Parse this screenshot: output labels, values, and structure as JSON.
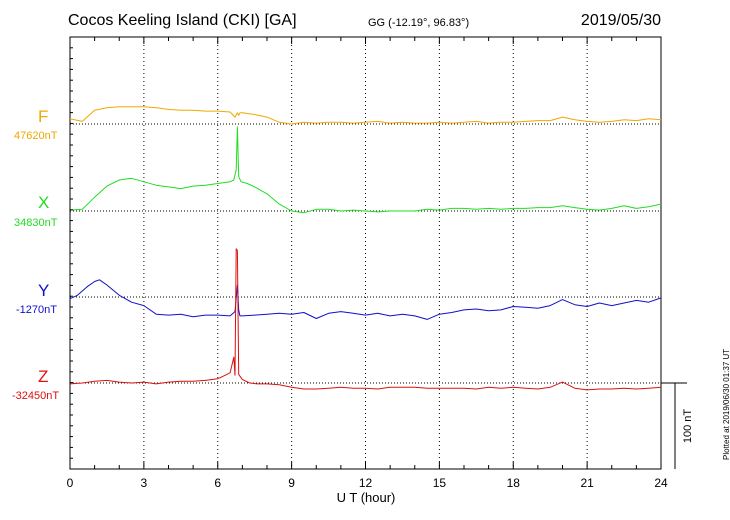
{
  "header": {
    "title": "Cocos Keeling Island (CKI)  [GA]",
    "coords": "GG (-12.19°,  96.83°)",
    "date": "2019/05/30"
  },
  "footer": {
    "plotted": "Plotted at 2019/06/30 01:37 UT"
  },
  "colors": {
    "F": "#f0a800",
    "X": "#22dd22",
    "Y": "#1010cc",
    "Z": "#dd1010"
  },
  "chart_data": {
    "type": "line",
    "xlabel": "U T (hour)",
    "xlim": [
      0,
      24
    ],
    "x_ticks": [
      "0",
      "3",
      "6",
      "9",
      "12",
      "15",
      "18",
      "21",
      "24"
    ],
    "scale_bar_label": "100 nT",
    "scale_bar_nT": 100,
    "series": [
      {
        "name": "F",
        "baseline_label": "47620nT",
        "baseline_nT": 47620,
        "x": [
          0,
          0.5,
          1,
          1.5,
          2,
          2.5,
          3,
          3.5,
          4,
          4.5,
          5,
          5.5,
          6,
          6.5,
          6.7,
          6.8,
          6.85,
          6.9,
          7,
          7.5,
          8,
          8.5,
          9,
          9.5,
          10,
          10.5,
          11,
          11.5,
          12,
          12.5,
          13,
          13.5,
          14,
          14.5,
          15,
          15.5,
          16,
          16.5,
          17,
          17.5,
          18,
          18.5,
          19,
          19.5,
          20,
          20.5,
          21,
          21.5,
          22,
          22.5,
          23,
          23.5,
          24
        ],
        "y": [
          47626,
          47623,
          47636,
          47639,
          47640,
          47640,
          47640,
          47639,
          47637,
          47636,
          47636,
          47635,
          47635,
          47634,
          47628,
          47633,
          47630,
          47633,
          47633,
          47631,
          47628,
          47622,
          47620,
          47622,
          47621,
          47622,
          47622,
          47621,
          47622,
          47623,
          47621,
          47622,
          47621,
          47621,
          47622,
          47621,
          47622,
          47623,
          47621,
          47622,
          47622,
          47623,
          47624,
          47624,
          47628,
          47625,
          47623,
          47622,
          47623,
          47625,
          47624,
          47626,
          47625
        ]
      },
      {
        "name": "X",
        "baseline_label": "34830nT",
        "baseline_nT": 34830,
        "x": [
          0,
          0.5,
          1,
          1.5,
          2,
          2.5,
          3,
          3.5,
          4,
          4.5,
          5,
          5.5,
          6,
          6.5,
          6.65,
          6.75,
          6.8,
          6.85,
          6.95,
          7.2,
          7.5,
          8,
          8.5,
          9,
          9.5,
          10,
          10.5,
          11,
          11.5,
          12,
          12.5,
          13,
          13.5,
          14,
          14.5,
          15,
          15.5,
          16,
          16.5,
          17,
          17.5,
          18,
          18.5,
          19,
          19.5,
          20,
          20.5,
          21,
          21.5,
          22,
          22.5,
          23,
          23.5,
          24
        ],
        "y": [
          34831,
          34832,
          34846,
          34859,
          34866,
          34868,
          34864,
          34860,
          34858,
          34856,
          34859,
          34860,
          34862,
          34864,
          34866,
          34878,
          34928,
          34870,
          34864,
          34862,
          34858,
          34850,
          34838,
          34830,
          34828,
          34832,
          34832,
          34830,
          34831,
          34830,
          34829,
          34830,
          34830,
          34830,
          34832,
          34831,
          34833,
          34833,
          34832,
          34833,
          34832,
          34833,
          34833,
          34834,
          34834,
          34836,
          34834,
          34832,
          34831,
          34833,
          34836,
          34833,
          34835,
          34838
        ]
      },
      {
        "name": "Y",
        "baseline_label": "-1270nT",
        "baseline_nT": -1270,
        "x": [
          0,
          0.3,
          0.7,
          1,
          1.2,
          1.5,
          2,
          2.5,
          3,
          3.5,
          4,
          4.5,
          5,
          5.5,
          6,
          6.5,
          6.7,
          6.8,
          6.85,
          6.9,
          7,
          7.5,
          8,
          8.5,
          9,
          9.5,
          10,
          10.5,
          11,
          11.5,
          12,
          12.5,
          13,
          13.5,
          14,
          14.5,
          15,
          15.5,
          16,
          16.5,
          17,
          17.5,
          18,
          18.5,
          19,
          19.5,
          20,
          20.5,
          21,
          21.5,
          22,
          22.5,
          23,
          23.5,
          24
        ],
        "y": [
          -1272,
          -1268,
          -1258,
          -1252,
          -1250,
          -1256,
          -1268,
          -1276,
          -1280,
          -1290,
          -1291,
          -1290,
          -1293,
          -1291,
          -1291,
          -1292,
          -1287,
          -1256,
          -1285,
          -1292,
          -1292,
          -1291,
          -1290,
          -1289,
          -1290,
          -1288,
          -1295,
          -1289,
          -1287,
          -1289,
          -1291,
          -1289,
          -1292,
          -1290,
          -1292,
          -1296,
          -1290,
          -1288,
          -1285,
          -1284,
          -1286,
          -1285,
          -1281,
          -1282,
          -1283,
          -1280,
          -1273,
          -1279,
          -1281,
          -1277,
          -1280,
          -1277,
          -1274,
          -1276,
          -1271
        ]
      },
      {
        "name": "Z",
        "baseline_label": "-32450nT",
        "baseline_nT": -32450,
        "x": [
          0,
          0.5,
          1,
          1.5,
          2,
          2.5,
          3,
          3.5,
          4,
          4.5,
          5,
          5.5,
          6,
          6.3,
          6.5,
          6.65,
          6.7,
          6.75,
          6.8,
          6.85,
          6.9,
          7,
          7.3,
          7.6,
          8,
          8.5,
          9,
          9.5,
          10,
          10.5,
          11,
          11.5,
          12,
          12.5,
          13,
          13.5,
          14,
          14.5,
          15,
          15.5,
          16,
          16.5,
          17,
          17.5,
          18,
          18.5,
          19,
          19.5,
          20,
          20.5,
          21,
          21.5,
          22,
          22.5,
          23,
          23.5,
          24
        ],
        "y": [
          -32451,
          -32450,
          -32448,
          -32447,
          -32449,
          -32450,
          -32449,
          -32451,
          -32449,
          -32448,
          -32448,
          -32447,
          -32445,
          -32441,
          -32438,
          -32420,
          -32441,
          -32294,
          -32296,
          -32440,
          -32442,
          -32446,
          -32450,
          -32451,
          -32451,
          -32452,
          -32455,
          -32457,
          -32457,
          -32456,
          -32455,
          -32456,
          -32456,
          -32457,
          -32455,
          -32455,
          -32455,
          -32456,
          -32456,
          -32456,
          -32456,
          -32457,
          -32455,
          -32456,
          -32455,
          -32456,
          -32457,
          -32455,
          -32449,
          -32456,
          -32458,
          -32457,
          -32457,
          -32456,
          -32457,
          -32456,
          -32455
        ]
      }
    ]
  }
}
